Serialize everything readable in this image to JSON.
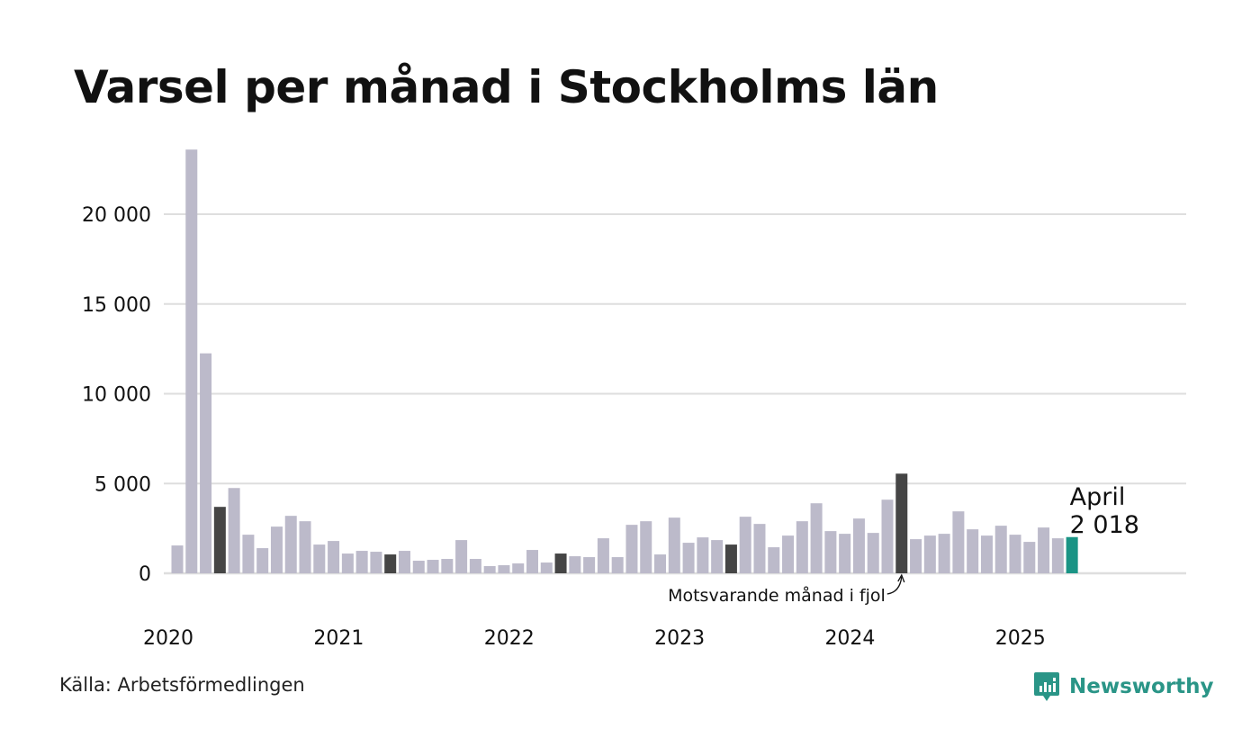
{
  "title": "Varsel per månad i Stockholms län",
  "source": "Källa: Arbetsförmedlingen",
  "brand": {
    "name": "Newsworthy",
    "icon": "newsworthy-logo-icon"
  },
  "colors": {
    "bar": "#bcbaca",
    "same_month": "#454545",
    "current": "#1a9485",
    "grid": "#dedede",
    "brand": "#2a9587"
  },
  "chart_data": {
    "type": "bar",
    "title": "Varsel per månad i Stockholms län",
    "xlabel": "",
    "ylabel": "",
    "ylim": [
      0,
      23600
    ],
    "yticks": [
      0,
      5000,
      10000,
      15000,
      20000
    ],
    "ytick_labels": [
      "0",
      "5 000",
      "10 000",
      "15 000",
      "20 000"
    ],
    "xtick_labels": [
      "2020",
      "2021",
      "2022",
      "2023",
      "2024",
      "2025"
    ],
    "grid": true,
    "start": "2020-01",
    "end": "2025-04",
    "values": [
      1550,
      23600,
      12250,
      3700,
      4750,
      2150,
      1400,
      2600,
      3200,
      2900,
      1600,
      1800,
      1100,
      1250,
      1200,
      1050,
      1250,
      700,
      750,
      800,
      1850,
      800,
      400,
      450,
      550,
      1300,
      600,
      1100,
      950,
      900,
      1950,
      900,
      2700,
      2900,
      1050,
      3100,
      1700,
      2000,
      1850,
      1600,
      3150,
      2750,
      1450,
      2100,
      2900,
      3900,
      2350,
      2200,
      3050,
      2250,
      4100,
      5550,
      1900,
      2100,
      2200,
      3450,
      2450,
      2100,
      2650,
      2150,
      1750,
      2550,
      1950,
      2018
    ],
    "highlight_same_month": [
      "2020-04",
      "2021-04",
      "2022-04",
      "2023-04",
      "2024-04"
    ],
    "current": {
      "label": "April",
      "value_label": "2 018",
      "value": 2018
    },
    "annotation": "Motsvarande månad i fjol"
  }
}
